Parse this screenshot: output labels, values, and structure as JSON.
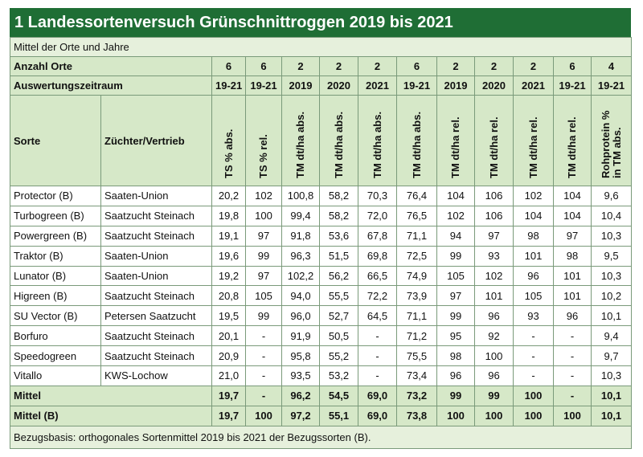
{
  "title": "1 Landessortenversuch Grünschnittroggen 2019 bis 2021",
  "subtitle": "Mittel der Orte und Jahre",
  "table": {
    "anzahl_orte": {
      "label": "Anzahl Orte",
      "values": [
        "6",
        "6",
        "2",
        "2",
        "2",
        "6",
        "2",
        "2",
        "2",
        "6",
        "4"
      ]
    },
    "zeitraum": {
      "label": "Auswertungszeitraum",
      "values": [
        "19-21",
        "19-21",
        "2019",
        "2020",
        "2021",
        "19-21",
        "2019",
        "2020",
        "2021",
        "19-21",
        "19-21"
      ]
    },
    "columns": {
      "sorte": "Sorte",
      "zuechter": "Züchter/Vertrieb",
      "measures": [
        "TS % abs.",
        "TS % rel.",
        "TM dt/ha abs.",
        "TM dt/ha abs.",
        "TM dt/ha abs.",
        "TM dt/ha abs.",
        "TM dt/ha rel.",
        "TM dt/ha rel.",
        "TM dt/ha rel.",
        "TM dt/ha rel.",
        "Rohprotein % in TM abs."
      ]
    },
    "rows": [
      [
        "Protector (B)",
        "Saaten-Union",
        "20,2",
        "102",
        "100,8",
        "58,2",
        "70,3",
        "76,4",
        "104",
        "106",
        "102",
        "104",
        "9,6"
      ],
      [
        "Turbogreen (B)",
        "Saatzucht Steinach",
        "19,8",
        "100",
        "99,4",
        "58,2",
        "72,0",
        "76,5",
        "102",
        "106",
        "104",
        "104",
        "10,4"
      ],
      [
        "Powergreen (B)",
        "Saatzucht Steinach",
        "19,1",
        "97",
        "91,8",
        "53,6",
        "67,8",
        "71,1",
        "94",
        "97",
        "98",
        "97",
        "10,3"
      ],
      [
        "Traktor (B)",
        "Saaten-Union",
        "19,6",
        "99",
        "96,3",
        "51,5",
        "69,8",
        "72,5",
        "99",
        "93",
        "101",
        "98",
        "9,5"
      ],
      [
        "Lunator (B)",
        "Saaten-Union",
        "19,2",
        "97",
        "102,2",
        "56,2",
        "66,5",
        "74,9",
        "105",
        "102",
        "96",
        "101",
        "10,3"
      ],
      [
        "Higreen (B)",
        "Saatzucht Steinach",
        "20,8",
        "105",
        "94,0",
        "55,5",
        "72,2",
        "73,9",
        "97",
        "101",
        "105",
        "101",
        "10,2"
      ],
      [
        "SU Vector (B)",
        "Petersen Saatzucht",
        "19,5",
        "99",
        "96,0",
        "52,7",
        "64,5",
        "71,1",
        "99",
        "96",
        "93",
        "96",
        "10,1"
      ],
      [
        "Borfuro",
        "Saatzucht Steinach",
        "20,1",
        "-",
        "91,9",
        "50,5",
        "-",
        "71,2",
        "95",
        "92",
        "-",
        "-",
        "9,4"
      ],
      [
        "Speedogreen",
        "Saatzucht Steinach",
        "20,9",
        "-",
        "95,8",
        "55,2",
        "-",
        "75,5",
        "98",
        "100",
        "-",
        "-",
        "9,7"
      ],
      [
        "Vitallo",
        "KWS-Lochow",
        "21,0",
        "-",
        "93,5",
        "53,2",
        "-",
        "73,4",
        "96",
        "96",
        "-",
        "-",
        "10,3"
      ]
    ],
    "summary_rows": [
      {
        "label": "Mittel",
        "values": [
          "19,7",
          "-",
          "96,2",
          "54,5",
          "69,0",
          "73,2",
          "99",
          "99",
          "100",
          "-",
          "10,1"
        ]
      },
      {
        "label": "Mittel (B)",
        "values": [
          "19,7",
          "100",
          "97,2",
          "55,1",
          "69,0",
          "73,8",
          "100",
          "100",
          "100",
          "100",
          "10,1"
        ]
      }
    ]
  },
  "footnote": "Bezugsbasis: orthogonales Sortenmittel 2019 bis 2021 der Bezugssorten (B)."
}
